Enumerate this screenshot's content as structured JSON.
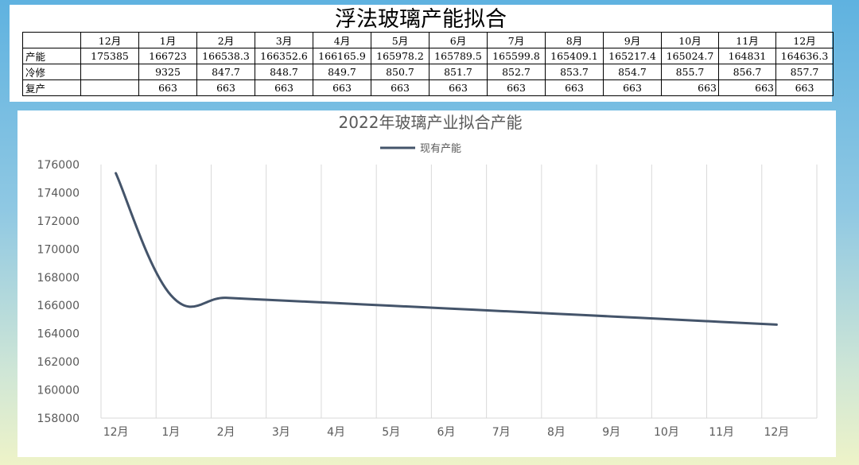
{
  "table": {
    "title": "浮法玻璃产能拟合",
    "headers": [
      "",
      "12月",
      "1月",
      "2月",
      "3月",
      "4月",
      "5月",
      "6月",
      "7月",
      "8月",
      "9月",
      "10月",
      "11月",
      "12月"
    ],
    "rows": [
      {
        "label": "产能",
        "cells": [
          "175385",
          "166723",
          "166538.3",
          "166352.6",
          "166165.9",
          "165978.2",
          "165789.5",
          "165599.8",
          "165409.1",
          "165217.4",
          "165024.7",
          "164831",
          "164636.3"
        ]
      },
      {
        "label": "冷修",
        "cells": [
          "",
          "9325",
          "847.7",
          "848.7",
          "849.7",
          "850.7",
          "851.7",
          "852.7",
          "853.7",
          "854.7",
          "855.7",
          "856.7",
          "857.7"
        ]
      },
      {
        "label": "复产",
        "cells": [
          "",
          "663",
          "663",
          "663",
          "663",
          "663",
          "663",
          "663",
          "663",
          "663",
          "663",
          "663",
          "663"
        ]
      }
    ]
  },
  "chart_data": {
    "type": "line",
    "title": "2022年玻璃产业拟合产能",
    "categories": [
      "12月",
      "1月",
      "2月",
      "3月",
      "4月",
      "5月",
      "6月",
      "7月",
      "8月",
      "9月",
      "10月",
      "11月",
      "12月"
    ],
    "series": [
      {
        "name": "现有产能",
        "values": [
          175385,
          166723,
          166538.3,
          166352.6,
          166165.9,
          165978.2,
          165789.5,
          165599.8,
          165409.1,
          165217.4,
          165024.7,
          164831,
          164636.3
        ]
      }
    ],
    "ylim": [
      158000,
      176000
    ],
    "yticks": [
      "158000",
      "160000",
      "162000",
      "164000",
      "166000",
      "168000",
      "170000",
      "172000",
      "174000",
      "176000"
    ],
    "grid": "vertical",
    "legend": "top",
    "colors": {
      "line": "#44546a",
      "grid": "#d9d9d9",
      "text": "#595959"
    }
  }
}
